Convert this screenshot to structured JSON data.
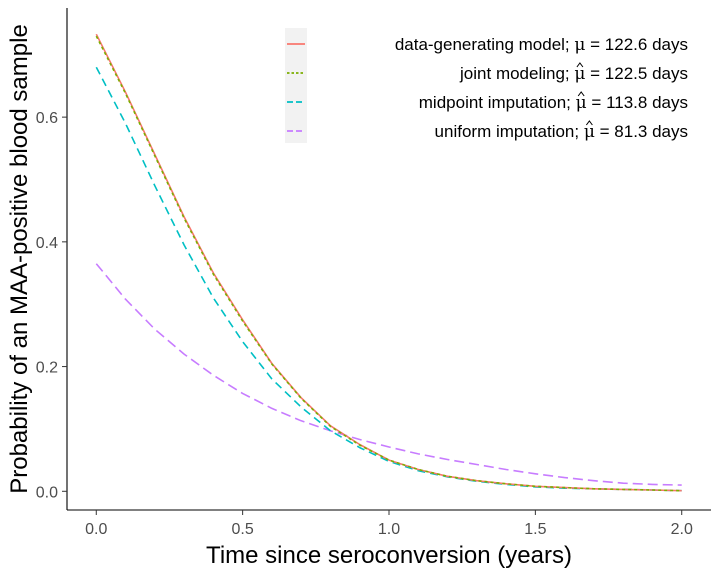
{
  "chart_data": {
    "type": "line",
    "xlabel": "Time since seroconversion (years)",
    "ylabel": "Probability of an MAA-positive blood sample",
    "xlim": [
      -0.1,
      2.1
    ],
    "ylim": [
      -0.03,
      0.775
    ],
    "xticks": [
      0.0,
      0.5,
      1.0,
      1.5,
      2.0
    ],
    "xtick_labels": [
      "0.0",
      "0.5",
      "1.0",
      "1.5",
      "2.0"
    ],
    "yticks": [
      0.0,
      0.2,
      0.4,
      0.6
    ],
    "ytick_labels": [
      "0.0",
      "0.2",
      "0.4",
      "0.6"
    ],
    "grid": false,
    "legend_position": "top-right",
    "series": [
      {
        "name": "data-generating model; μ = 122.6 days",
        "legend_prefix": "data-generating model;",
        "legend_symbol": "μ",
        "legend_hat": false,
        "legend_suffix": " = 122.6 days",
        "color": "#F8766D",
        "dash": "solid",
        "x": [
          0.0,
          0.1,
          0.2,
          0.3,
          0.4,
          0.5,
          0.6,
          0.7,
          0.8,
          0.9,
          1.0,
          1.1,
          1.2,
          1.3,
          1.4,
          1.5,
          1.6,
          1.7,
          1.8,
          1.9,
          2.0
        ],
        "y": [
          0.733,
          0.64,
          0.54,
          0.44,
          0.35,
          0.275,
          0.205,
          0.15,
          0.105,
          0.075,
          0.05,
          0.035,
          0.024,
          0.017,
          0.012,
          0.008,
          0.006,
          0.004,
          0.003,
          0.002,
          0.001
        ]
      },
      {
        "name": "joint modeling; μ̂ = 122.5 days",
        "legend_prefix": "joint modeling;",
        "legend_symbol": "μ",
        "legend_hat": true,
        "legend_suffix": " = 122.5 days",
        "color": "#7CAE00",
        "dash": "3,3",
        "x": [
          0.0,
          0.1,
          0.2,
          0.3,
          0.4,
          0.5,
          0.6,
          0.7,
          0.8,
          0.9,
          1.0,
          1.1,
          1.2,
          1.3,
          1.4,
          1.5,
          1.6,
          1.7,
          1.8,
          1.9,
          2.0
        ],
        "y": [
          0.73,
          0.638,
          0.538,
          0.438,
          0.348,
          0.273,
          0.204,
          0.149,
          0.104,
          0.074,
          0.05,
          0.035,
          0.024,
          0.017,
          0.012,
          0.008,
          0.006,
          0.004,
          0.003,
          0.002,
          0.001
        ]
      },
      {
        "name": "midpoint imputation; μ̂ = 113.8 days",
        "legend_prefix": "midpoint imputation;",
        "legend_symbol": "μ",
        "legend_hat": true,
        "legend_suffix": " = 113.8 days",
        "color": "#00BFC4",
        "dash": "8,5",
        "x": [
          0.0,
          0.1,
          0.2,
          0.3,
          0.4,
          0.5,
          0.6,
          0.7,
          0.8,
          0.9,
          1.0,
          1.1,
          1.2,
          1.3,
          1.4,
          1.5,
          1.6,
          1.7,
          1.8,
          1.9,
          2.0
        ],
        "y": [
          0.68,
          0.59,
          0.49,
          0.395,
          0.31,
          0.24,
          0.18,
          0.135,
          0.097,
          0.07,
          0.048,
          0.033,
          0.023,
          0.016,
          0.011,
          0.007,
          0.005,
          0.004,
          0.003,
          0.002,
          0.001
        ]
      },
      {
        "name": "uniform imputation; μ̂ = 81.3 days",
        "legend_prefix": "uniform imputation;",
        "legend_symbol": "μ",
        "legend_hat": true,
        "legend_suffix": " = 81.3 days",
        "color": "#C77CFF",
        "dash": "10,5",
        "x": [
          0.0,
          0.1,
          0.2,
          0.3,
          0.4,
          0.5,
          0.6,
          0.7,
          0.8,
          0.9,
          1.0,
          1.1,
          1.2,
          1.3,
          1.4,
          1.5,
          1.6,
          1.7,
          1.8,
          1.9,
          2.0
        ],
        "y": [
          0.365,
          0.308,
          0.26,
          0.22,
          0.186,
          0.157,
          0.133,
          0.113,
          0.097,
          0.083,
          0.071,
          0.06,
          0.051,
          0.043,
          0.035,
          0.028,
          0.022,
          0.017,
          0.013,
          0.011,
          0.01
        ]
      }
    ]
  }
}
